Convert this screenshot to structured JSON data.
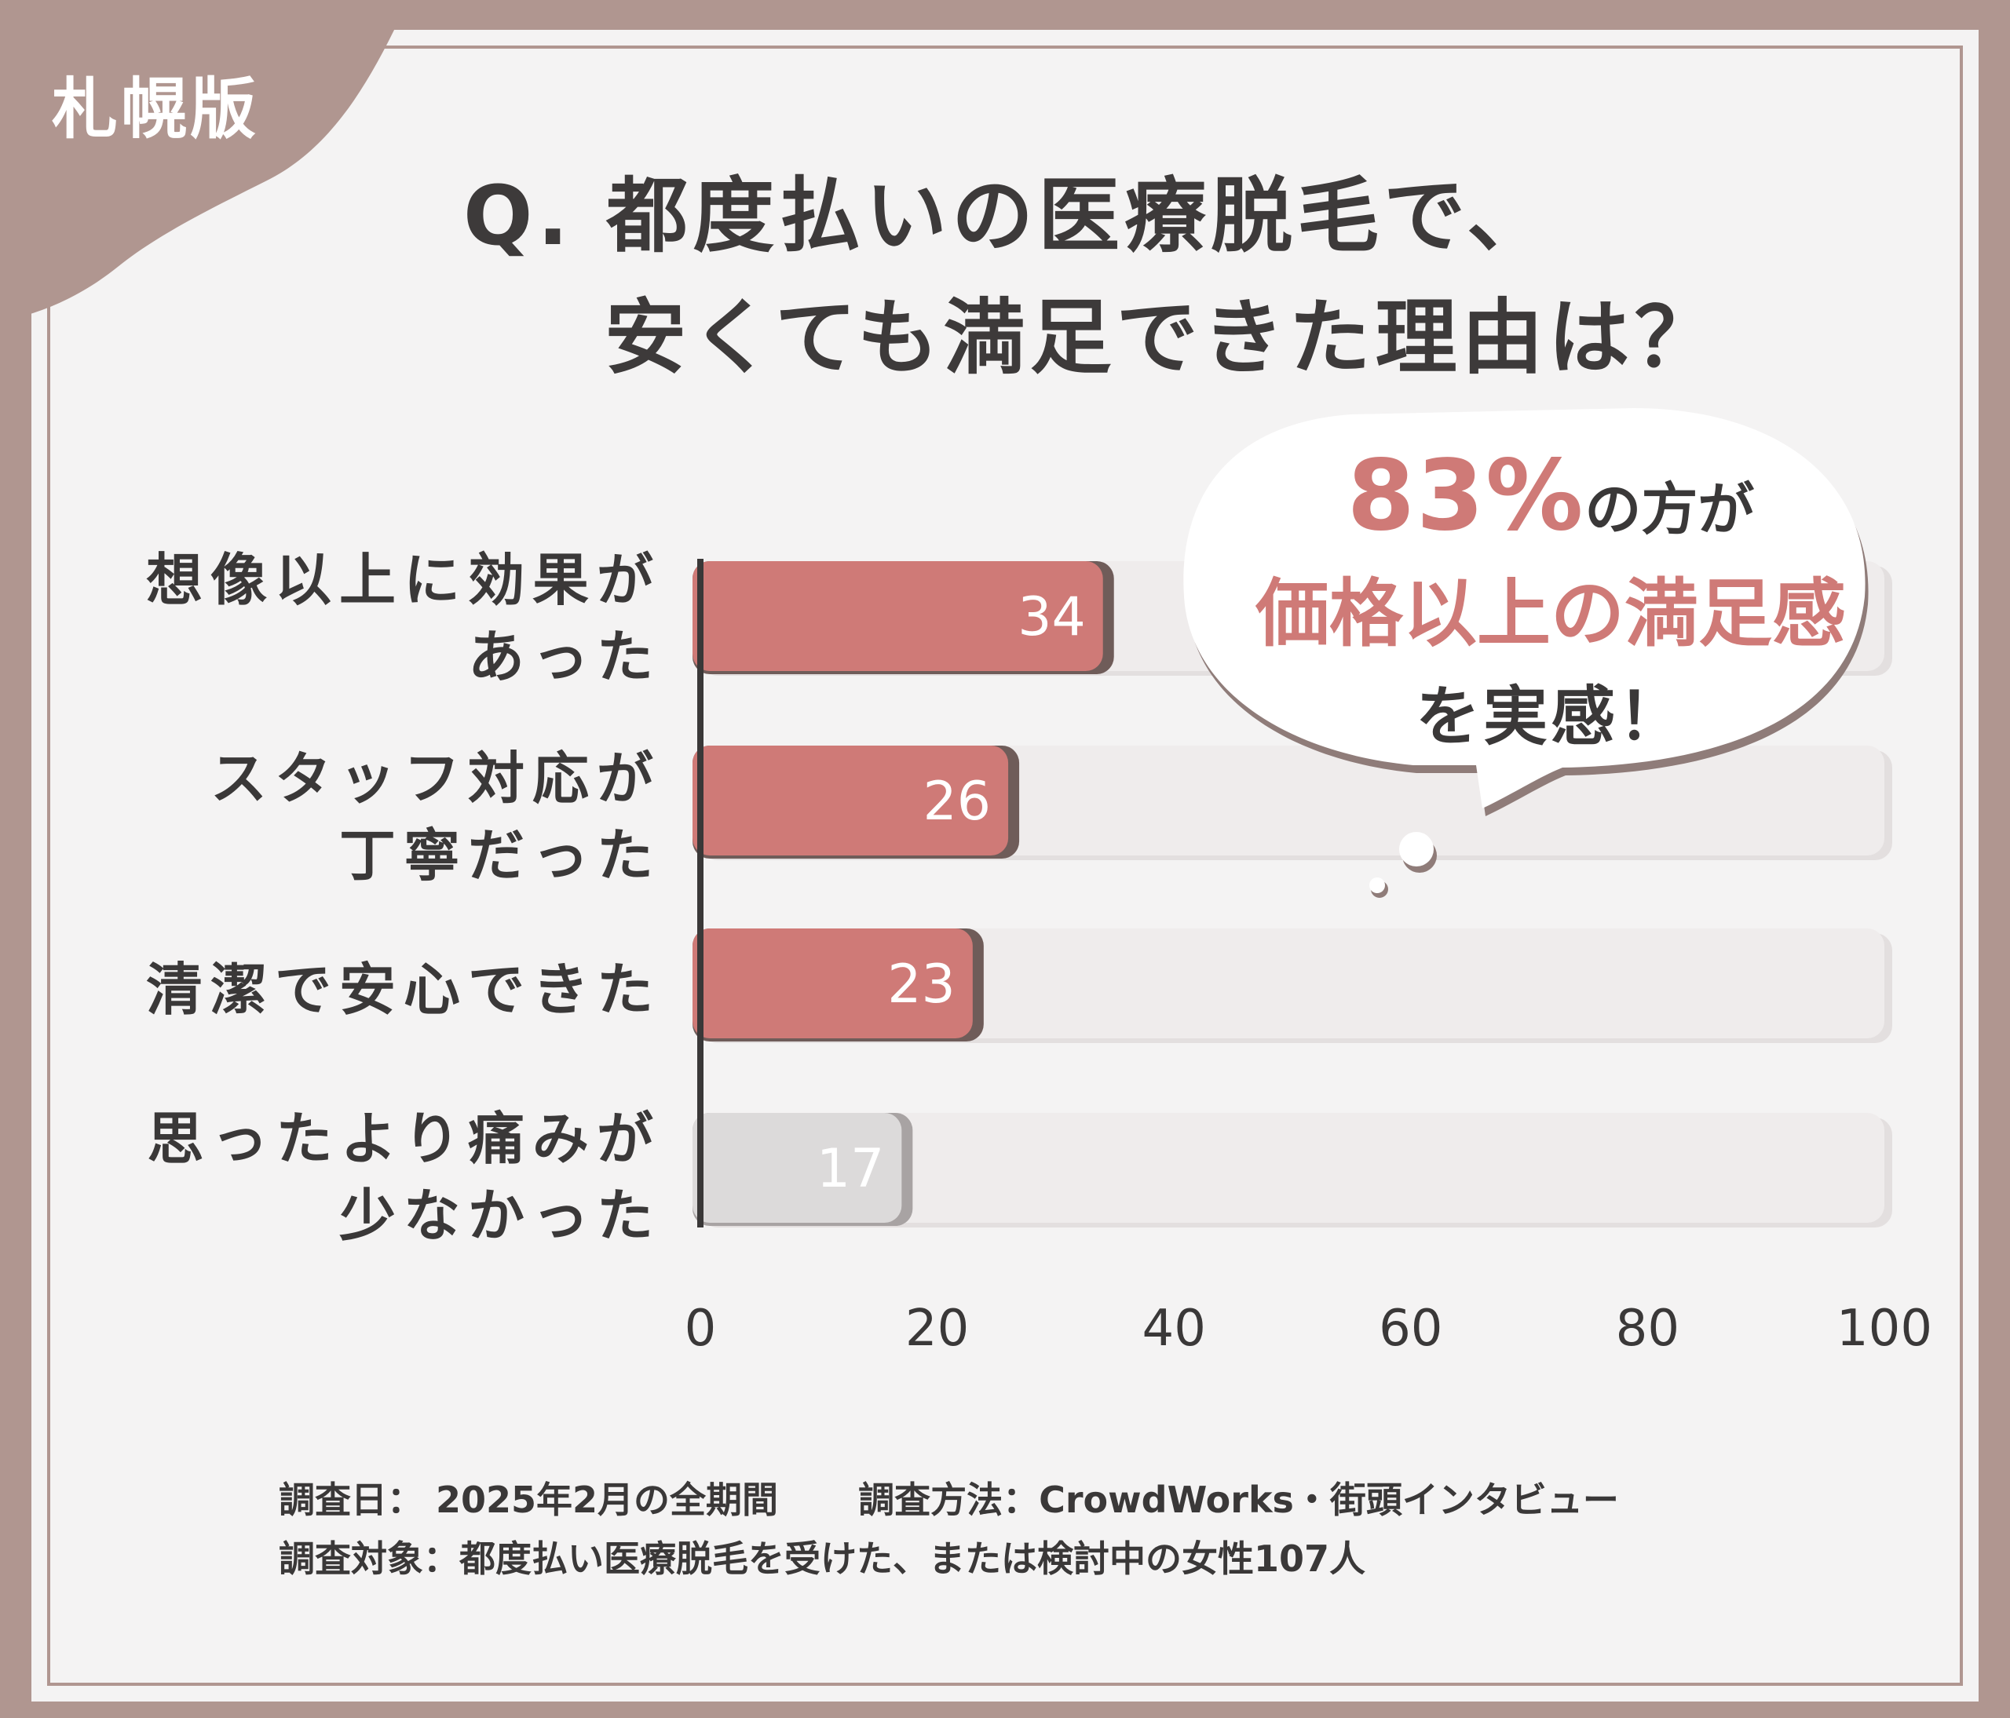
{
  "region_label": "札幌版",
  "title_line1": "Q. 都度払いの医療脱毛で、",
  "title_line2": "安くても満足できた理由は？",
  "callout": {
    "percent": "83%",
    "line1_rest": "の方が",
    "line2": "価格以上の満足感",
    "line3": "を実感！"
  },
  "footer": {
    "date_label": "調査日：",
    "date_value": "2025年2月の全期間",
    "method_label": "調査方法：",
    "method_value": "CrowdWorks・街頭インタビュー",
    "target_label": "調査対象：",
    "target_value": "都度払い医療脱毛を受けた、または検討中の女性107人"
  },
  "colors": {
    "accent": "#cf7a77",
    "bar_muted": "#dcdada",
    "track": "#efecec",
    "frame": "#b09690",
    "text": "#3a3838"
  },
  "chart_data": {
    "type": "bar",
    "orientation": "horizontal",
    "categories": [
      [
        "想像以上に効果が",
        "あった"
      ],
      [
        "スタッフ対応が",
        "丁寧だった"
      ],
      [
        "清潔で安心できた"
      ],
      [
        "思ったより痛みが",
        "少なかった"
      ]
    ],
    "values": [
      34,
      26,
      23,
      17
    ],
    "highlighted": [
      true,
      true,
      true,
      false
    ],
    "xlim": [
      0,
      100
    ],
    "xticks": [
      "0",
      "20",
      "40",
      "60",
      "80",
      "100"
    ],
    "grid": false,
    "legend": "none"
  }
}
